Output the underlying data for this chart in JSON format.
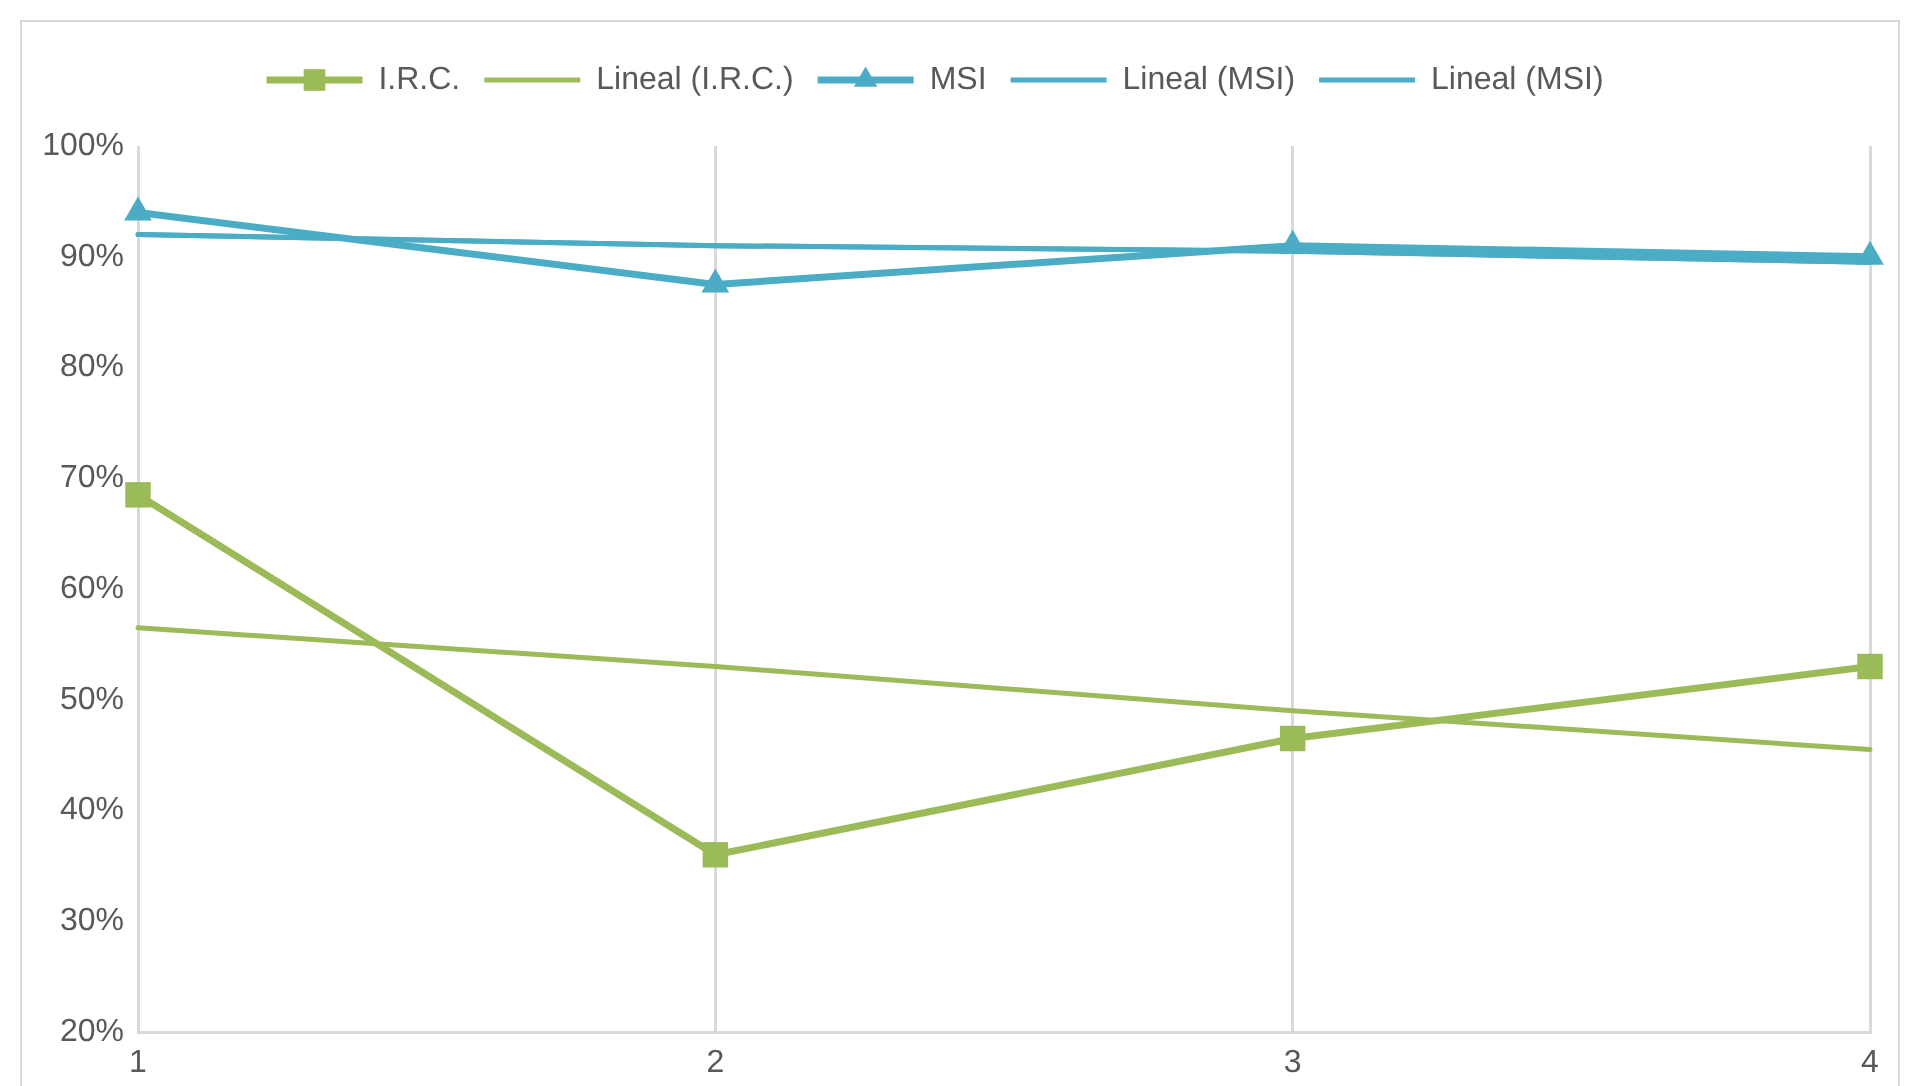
{
  "chart_data": {
    "type": "line",
    "x": [
      1,
      2,
      3,
      4
    ],
    "xlim": [
      1,
      4
    ],
    "xticks": [
      1,
      2,
      3,
      4
    ],
    "ylim": [
      20,
      100
    ],
    "yticks": [
      {
        "value": 20,
        "label": "20%"
      },
      {
        "value": 30,
        "label": "30%"
      },
      {
        "value": 40,
        "label": "40%"
      },
      {
        "value": 50,
        "label": "50%"
      },
      {
        "value": 60,
        "label": "60%"
      },
      {
        "value": 70,
        "label": "70%"
      },
      {
        "value": 80,
        "label": "80%"
      },
      {
        "value": 90,
        "label": "90%"
      },
      {
        "value": 100,
        "label": "100%"
      }
    ],
    "series": [
      {
        "name": "I.R.C.",
        "color": "#9bbb59",
        "values": [
          68.5,
          36,
          46.5,
          53
        ],
        "marker": "square"
      },
      {
        "name": "Lineal (I.R.C.)",
        "color": "#9bbb59",
        "values": [
          56.5,
          53,
          49,
          45.5
        ],
        "marker": "none"
      },
      {
        "name": "MSI",
        "color": "#4bacc6",
        "values": [
          94,
          87.5,
          91,
          90
        ],
        "marker": "triangle"
      },
      {
        "name": "Lineal (MSI)",
        "color": "#4bacc6",
        "values": [
          92,
          91,
          90.5,
          89.5
        ],
        "marker": "none"
      },
      {
        "name": "Lineal (MSI)",
        "color": "#4bacc6",
        "values": [
          92,
          91,
          90.5,
          89.5
        ],
        "marker": "none"
      }
    ],
    "grid": "x",
    "legend": "top",
    "line_style": "solid"
  }
}
